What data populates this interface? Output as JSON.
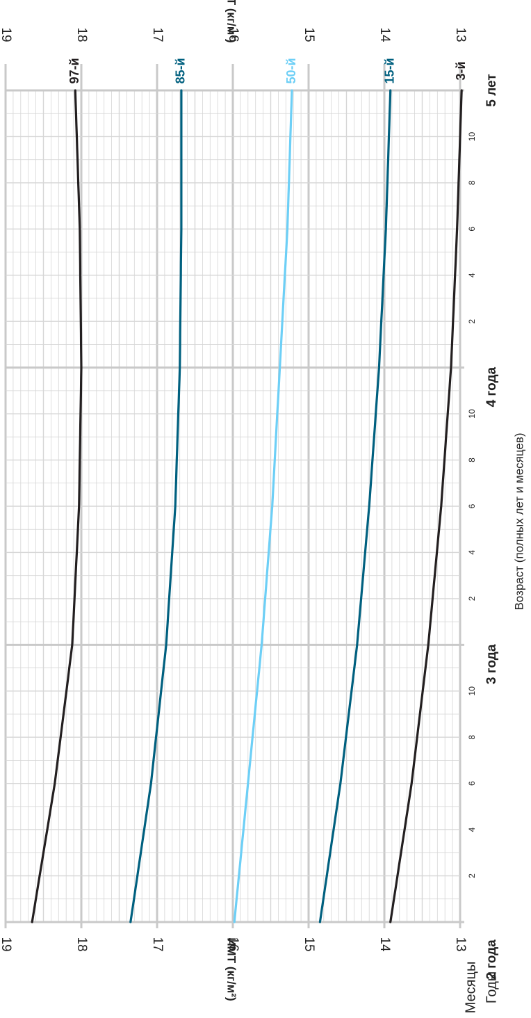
{
  "chart_data": {
    "type": "line",
    "orientation": "rotated-90-clockwise",
    "ylabel": "ИМТ (кг/м²)",
    "xlabel": "Возраст (полных лет и месяцев)",
    "corner_labels": {
      "months": "Месяцы",
      "years": "Годы"
    },
    "ylim": [
      13,
      19
    ],
    "yticks": [
      "13",
      "14",
      "15",
      "16",
      "17",
      "18",
      "19"
    ],
    "xlim_months": [
      24,
      60
    ],
    "year_ticks": [
      {
        "age_months": 24,
        "label": "2 года"
      },
      {
        "age_months": 36,
        "label": "3 года"
      },
      {
        "age_months": 48,
        "label": "4 года"
      },
      {
        "age_months": 60,
        "label": "5 лет"
      }
    ],
    "month_ticks": [
      {
        "age_months": 26,
        "label": "2"
      },
      {
        "age_months": 28,
        "label": "4"
      },
      {
        "age_months": 30,
        "label": "6"
      },
      {
        "age_months": 32,
        "label": "8"
      },
      {
        "age_months": 34,
        "label": "10"
      },
      {
        "age_months": 38,
        "label": "2"
      },
      {
        "age_months": 40,
        "label": "4"
      },
      {
        "age_months": 42,
        "label": "6"
      },
      {
        "age_months": 44,
        "label": "8"
      },
      {
        "age_months": 46,
        "label": "10"
      },
      {
        "age_months": 50,
        "label": "2"
      },
      {
        "age_months": 52,
        "label": "4"
      },
      {
        "age_months": 54,
        "label": "6"
      },
      {
        "age_months": 56,
        "label": "8"
      },
      {
        "age_months": 58,
        "label": "10"
      }
    ],
    "x": [
      24,
      30,
      36,
      42,
      48,
      54,
      60
    ],
    "series": [
      {
        "name": "97-й",
        "color": "#231f20",
        "values": [
          18.65,
          18.35,
          18.12,
          18.03,
          18.0,
          18.02,
          18.08
        ]
      },
      {
        "name": "85-й",
        "color": "#00607f",
        "values": [
          17.35,
          17.08,
          16.88,
          16.76,
          16.7,
          16.68,
          16.68
        ]
      },
      {
        "name": "50-й",
        "color": "#6dcff6",
        "values": [
          15.98,
          15.8,
          15.62,
          15.48,
          15.38,
          15.28,
          15.22
        ]
      },
      {
        "name": "15-й",
        "color": "#00607f",
        "values": [
          14.85,
          14.58,
          14.36,
          14.2,
          14.07,
          13.98,
          13.92
        ]
      },
      {
        "name": "3-й",
        "color": "#231f20",
        "values": [
          13.92,
          13.64,
          13.42,
          13.25,
          13.12,
          13.04,
          12.98
        ]
      }
    ]
  }
}
